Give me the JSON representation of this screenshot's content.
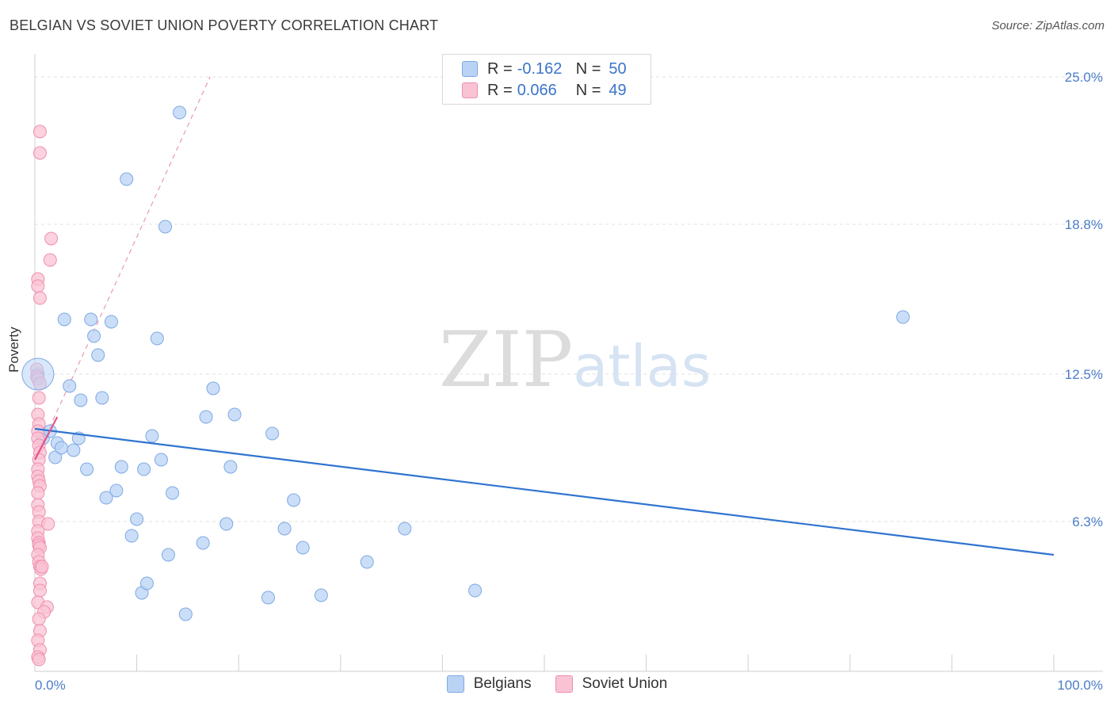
{
  "header": {
    "title": "BELGIAN VS SOVIET UNION POVERTY CORRELATION CHART",
    "source": "Source: ZipAtlas.com"
  },
  "watermark": {
    "zip": "ZIP",
    "atlas": "atlas"
  },
  "legend": {
    "rows": [
      {
        "r_label": "R =",
        "r_value": "-0.162",
        "n_label": "N =",
        "n_value": "50",
        "color": "#b9d3f5",
        "border": "#7ea9e3"
      },
      {
        "r_label": "R =",
        "r_value": "0.066",
        "n_label": "N =",
        "n_value": "49",
        "color": "#f9c3d3",
        "border": "#ef8fb0"
      }
    ]
  },
  "bottom_legend": [
    {
      "label": "Belgians",
      "color": "#b9d3f5",
      "border": "#7ea9e3"
    },
    {
      "label": "Soviet Union",
      "color": "#f9c3d3",
      "border": "#ef8fb0"
    }
  ],
  "chart_data": {
    "type": "scatter",
    "title": "BELGIAN VS SOVIET UNION POVERTY CORRELATION CHART",
    "xlabel": "",
    "ylabel": "Poverty",
    "xlim": [
      0,
      100
    ],
    "ylim": [
      0,
      25
    ],
    "x_tick_labels": [
      "0.0%",
      "100.0%"
    ],
    "y_ticks": [
      6.3,
      12.5,
      18.8,
      25.0
    ],
    "y_tick_labels": [
      "6.3%",
      "12.5%",
      "18.8%",
      "25.0%"
    ],
    "grid": true,
    "legend_position": "top-center",
    "series": [
      {
        "name": "Belgians",
        "color": "#7ea9e3",
        "fill": "#b9d3f5",
        "trend": {
          "x": [
            0,
            100
          ],
          "y": [
            10.2,
            4.9
          ],
          "style": "solid",
          "color": "#2f74d0"
        },
        "points": [
          [
            0.3,
            12.5
          ],
          [
            0.8,
            9.8
          ],
          [
            1.5,
            10.1
          ],
          [
            2.0,
            9.0
          ],
          [
            2.2,
            9.6
          ],
          [
            2.6,
            9.4
          ],
          [
            2.9,
            14.8
          ],
          [
            3.4,
            12.0
          ],
          [
            3.8,
            9.3
          ],
          [
            4.3,
            9.8
          ],
          [
            4.5,
            11.4
          ],
          [
            5.1,
            8.5
          ],
          [
            5.5,
            14.8
          ],
          [
            5.8,
            14.1
          ],
          [
            6.2,
            13.3
          ],
          [
            6.6,
            11.5
          ],
          [
            7.0,
            7.3
          ],
          [
            7.5,
            14.7
          ],
          [
            8.0,
            7.6
          ],
          [
            8.5,
            8.6
          ],
          [
            9.0,
            20.7
          ],
          [
            9.5,
            5.7
          ],
          [
            10.0,
            6.4
          ],
          [
            10.5,
            3.3
          ],
          [
            10.7,
            8.5
          ],
          [
            11.0,
            3.7
          ],
          [
            11.5,
            9.9
          ],
          [
            12.0,
            14.0
          ],
          [
            12.4,
            8.9
          ],
          [
            12.8,
            18.7
          ],
          [
            13.1,
            4.9
          ],
          [
            13.5,
            7.5
          ],
          [
            14.2,
            23.5
          ],
          [
            14.8,
            2.4
          ],
          [
            16.5,
            5.4
          ],
          [
            16.8,
            10.7
          ],
          [
            17.5,
            11.9
          ],
          [
            18.8,
            6.2
          ],
          [
            19.2,
            8.6
          ],
          [
            19.6,
            10.8
          ],
          [
            22.9,
            3.1
          ],
          [
            23.3,
            10.0
          ],
          [
            24.5,
            6.0
          ],
          [
            25.4,
            7.2
          ],
          [
            26.3,
            5.2
          ],
          [
            28.1,
            3.2
          ],
          [
            32.6,
            4.6
          ],
          [
            36.3,
            6.0
          ],
          [
            43.2,
            3.4
          ],
          [
            85.2,
            14.9
          ]
        ]
      },
      {
        "name": "Soviet Union",
        "color": "#ef8fb0",
        "fill": "#f9c3d3",
        "trend": {
          "x": [
            0,
            2.2
          ],
          "y": [
            8.9,
            10.7
          ],
          "style": "solid",
          "color": "#e0558a",
          "extension": {
            "x": [
              0,
              17.2
            ],
            "y": [
              8.9,
              25.0
            ],
            "style": "dashed",
            "color": "#e79ab6"
          }
        },
        "points": [
          [
            0.5,
            22.7
          ],
          [
            0.5,
            21.8
          ],
          [
            1.6,
            18.2
          ],
          [
            1.5,
            17.3
          ],
          [
            0.3,
            16.5
          ],
          [
            0.3,
            16.2
          ],
          [
            0.5,
            15.7
          ],
          [
            0.2,
            12.7
          ],
          [
            0.2,
            12.4
          ],
          [
            0.3,
            12.3
          ],
          [
            0.5,
            12.1
          ],
          [
            0.4,
            11.5
          ],
          [
            0.3,
            10.8
          ],
          [
            0.4,
            10.4
          ],
          [
            0.3,
            10.1
          ],
          [
            0.3,
            9.8
          ],
          [
            0.4,
            9.5
          ],
          [
            0.5,
            9.2
          ],
          [
            0.4,
            8.9
          ],
          [
            0.3,
            8.5
          ],
          [
            0.3,
            8.2
          ],
          [
            0.4,
            8.0
          ],
          [
            0.5,
            7.8
          ],
          [
            0.3,
            7.5
          ],
          [
            0.3,
            7.0
          ],
          [
            0.4,
            6.7
          ],
          [
            0.4,
            6.3
          ],
          [
            1.3,
            6.2
          ],
          [
            0.3,
            5.9
          ],
          [
            0.3,
            5.6
          ],
          [
            0.4,
            5.4
          ],
          [
            0.4,
            5.3
          ],
          [
            0.5,
            5.2
          ],
          [
            0.3,
            4.9
          ],
          [
            0.4,
            4.6
          ],
          [
            0.5,
            4.4
          ],
          [
            0.6,
            4.3
          ],
          [
            0.7,
            4.4
          ],
          [
            0.5,
            3.7
          ],
          [
            0.5,
            3.4
          ],
          [
            0.3,
            2.9
          ],
          [
            1.2,
            2.7
          ],
          [
            0.9,
            2.5
          ],
          [
            0.4,
            2.2
          ],
          [
            0.5,
            1.7
          ],
          [
            0.3,
            1.3
          ],
          [
            0.5,
            0.9
          ],
          [
            0.3,
            0.6
          ],
          [
            0.4,
            0.5
          ]
        ]
      }
    ]
  }
}
